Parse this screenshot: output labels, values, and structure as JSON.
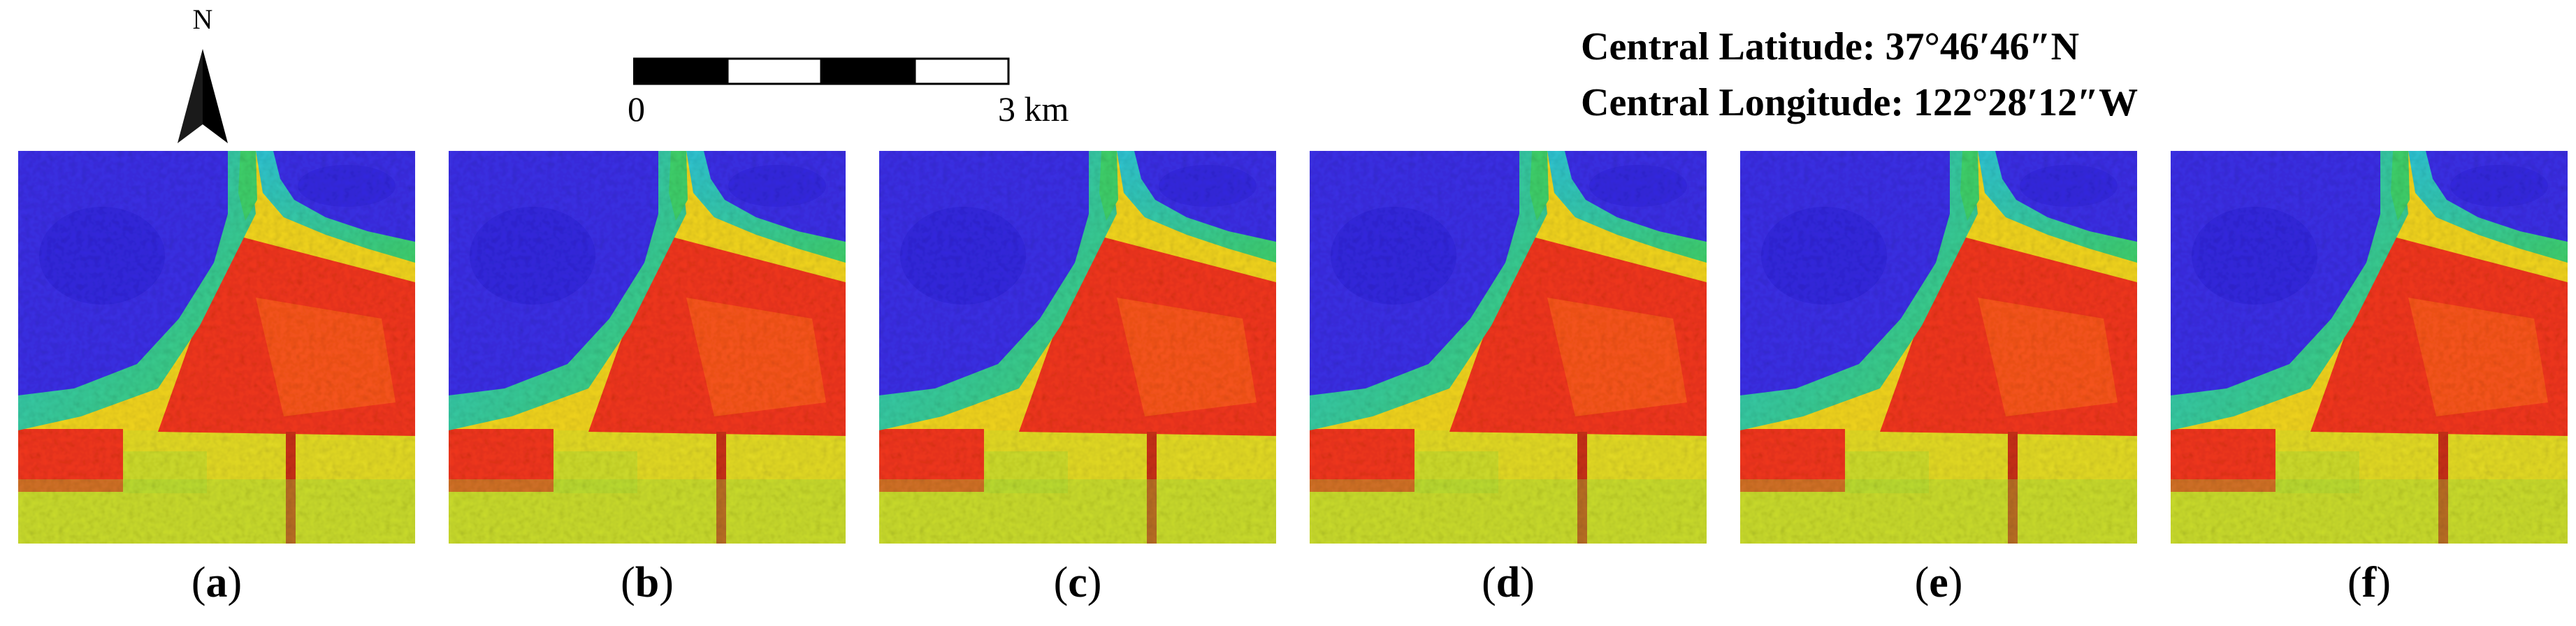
{
  "north_arrow": {
    "label": "N"
  },
  "scale_bar": {
    "start_label": "0",
    "end_label": "3 km",
    "segments": 4
  },
  "coordinates": {
    "latitude": "Central Latitude: 37°46′46″N",
    "longitude": "Central Longitude: 122°28′12″W"
  },
  "panels": [
    {
      "label": "a"
    },
    {
      "label": "b"
    },
    {
      "label": "c"
    },
    {
      "label": "d"
    },
    {
      "label": "e"
    },
    {
      "label": "f"
    }
  ],
  "colors": {
    "water": "#3b2fe6",
    "water_dark": "#2a1fd8",
    "coast_cyan": "#2ec4d6",
    "coast_green": "#3fd06a",
    "urban_red": "#f2361c",
    "urban_orange": "#ff6a1a",
    "park_yellow": "#f2d51e",
    "vegetation_green": "#9adf3a"
  }
}
